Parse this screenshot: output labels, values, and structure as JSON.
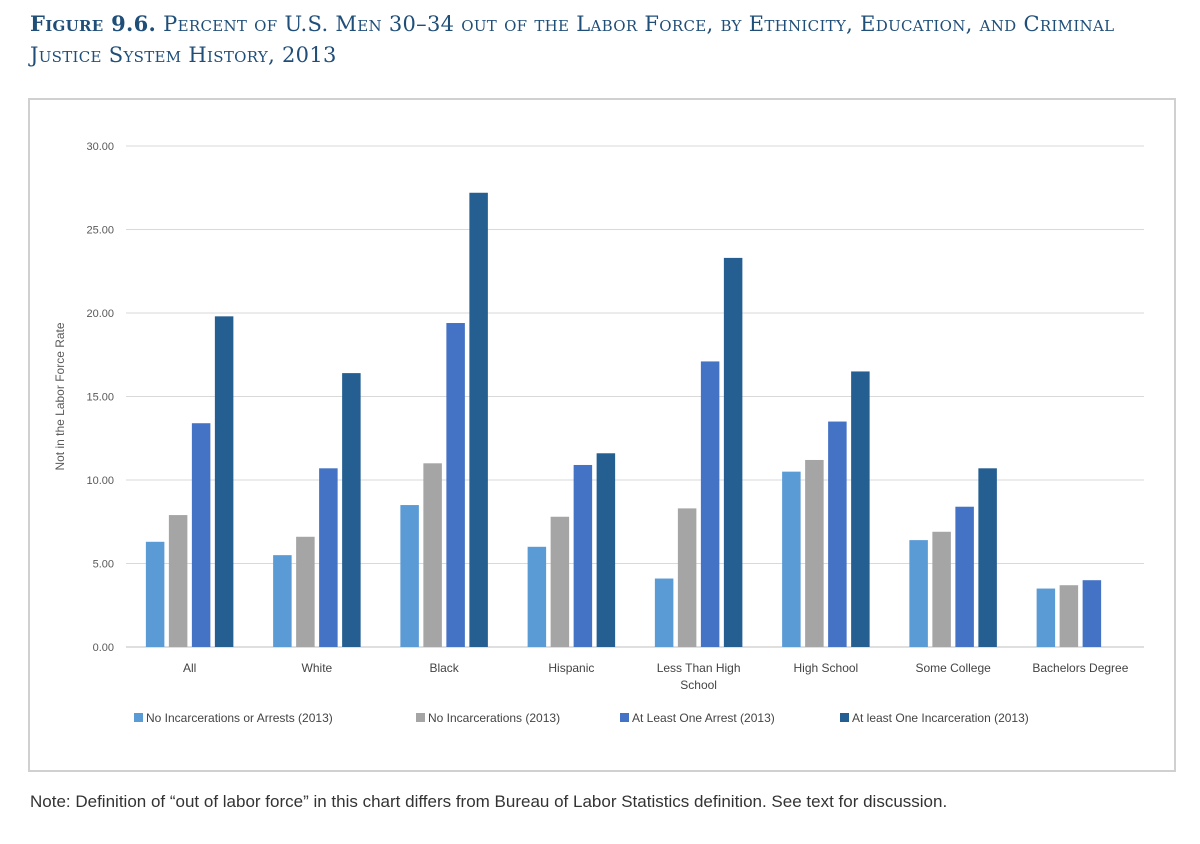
{
  "figure": {
    "label": "Figure 9.6.",
    "title": "Percent of U.S. Men 30–34 out of the Labor Force, by Ethnicity, Education, and Criminal Justice System History, 2013"
  },
  "note": "Note: Definition of “out of labor force” in this chart differs from Bureau of Labor Statistics definition. See text for discussion.",
  "chart_data": {
    "type": "bar",
    "title": "",
    "xlabel": "",
    "ylabel": "Not in the Labor Force Rate",
    "ylim": [
      0,
      30
    ],
    "yticks": [
      "0.00",
      "5.00",
      "10.00",
      "15.00",
      "20.00",
      "25.00",
      "30.00"
    ],
    "grid": true,
    "legend_position": "bottom",
    "categories": [
      "All",
      "White",
      "Black",
      "Hispanic",
      "Less Than High School",
      "High School",
      "Some College",
      "Bachelors Degree"
    ],
    "category_lines": [
      [
        "All"
      ],
      [
        "White"
      ],
      [
        "Black"
      ],
      [
        "Hispanic"
      ],
      [
        "Less Than High",
        "School"
      ],
      [
        "High School"
      ],
      [
        "Some College"
      ],
      [
        "Bachelors Degree"
      ]
    ],
    "series": [
      {
        "name": "No Incarcerations or Arrests (2013)",
        "color": "#5b9bd5",
        "values": [
          6.3,
          5.5,
          8.5,
          6.0,
          4.1,
          10.5,
          6.4,
          3.5
        ]
      },
      {
        "name": "No Incarcerations (2013)",
        "color": "#a5a5a5",
        "values": [
          7.9,
          6.6,
          11.0,
          7.8,
          8.3,
          11.2,
          6.9,
          3.7
        ]
      },
      {
        "name": "At Least One Arrest (2013)",
        "color": "#4472c4",
        "values": [
          13.4,
          10.7,
          19.4,
          10.9,
          17.1,
          13.5,
          8.4,
          4.0
        ]
      },
      {
        "name": "At least One Incarceration (2013)",
        "color": "#255e91",
        "values": [
          19.8,
          16.4,
          27.2,
          11.6,
          23.3,
          16.5,
          10.7,
          null
        ]
      }
    ]
  }
}
